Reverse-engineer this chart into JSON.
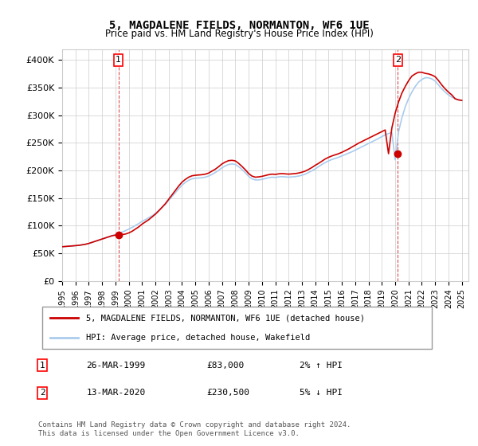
{
  "title": "5, MAGDALENE FIELDS, NORMANTON, WF6 1UE",
  "subtitle": "Price paid vs. HM Land Registry's House Price Index (HPI)",
  "ylabel_ticks": [
    "£0",
    "£50K",
    "£100K",
    "£150K",
    "£200K",
    "£250K",
    "£300K",
    "£350K",
    "£400K"
  ],
  "ytick_values": [
    0,
    50000,
    100000,
    150000,
    200000,
    250000,
    300000,
    350000,
    400000
  ],
  "ylim": [
    0,
    420000
  ],
  "xlim_start": 1995.0,
  "xlim_end": 2025.5,
  "legend_line1": "5, MAGDALENE FIELDS, NORMANTON, WF6 1UE (detached house)",
  "legend_line2": "HPI: Average price, detached house, Wakefield",
  "sale1_date": "26-MAR-1999",
  "sale1_price": "£83,000",
  "sale1_hpi": "2% ↑ HPI",
  "sale1_x": 1999.23,
  "sale1_y": 83000,
  "sale2_date": "13-MAR-2020",
  "sale2_price": "£230,500",
  "sale2_hpi": "5% ↓ HPI",
  "sale2_x": 2020.2,
  "sale2_y": 230500,
  "footnote": "Contains HM Land Registry data © Crown copyright and database right 2024.\nThis data is licensed under the Open Government Licence v3.0.",
  "line_red": "#cc0000",
  "line_blue": "#aaccee",
  "bg_color": "#ffffff",
  "grid_color": "#cccccc",
  "hpi_years": [
    1995.0,
    1995.25,
    1995.5,
    1995.75,
    1996.0,
    1996.25,
    1996.5,
    1996.75,
    1997.0,
    1997.25,
    1997.5,
    1997.75,
    1998.0,
    1998.25,
    1998.5,
    1998.75,
    1999.0,
    1999.25,
    1999.5,
    1999.75,
    2000.0,
    2000.25,
    2000.5,
    2000.75,
    2001.0,
    2001.25,
    2001.5,
    2001.75,
    2002.0,
    2002.25,
    2002.5,
    2002.75,
    2003.0,
    2003.25,
    2003.5,
    2003.75,
    2004.0,
    2004.25,
    2004.5,
    2004.75,
    2005.0,
    2005.25,
    2005.5,
    2005.75,
    2006.0,
    2006.25,
    2006.5,
    2006.75,
    2007.0,
    2007.25,
    2007.5,
    2007.75,
    2008.0,
    2008.25,
    2008.5,
    2008.75,
    2009.0,
    2009.25,
    2009.5,
    2009.75,
    2010.0,
    2010.25,
    2010.5,
    2010.75,
    2011.0,
    2011.25,
    2011.5,
    2011.75,
    2012.0,
    2012.25,
    2012.5,
    2012.75,
    2013.0,
    2013.25,
    2013.5,
    2013.75,
    2014.0,
    2014.25,
    2014.5,
    2014.75,
    2015.0,
    2015.25,
    2015.5,
    2015.75,
    2016.0,
    2016.25,
    2016.5,
    2016.75,
    2017.0,
    2017.25,
    2017.5,
    2017.75,
    2018.0,
    2018.25,
    2018.5,
    2018.75,
    2019.0,
    2019.25,
    2019.5,
    2019.75,
    2020.0,
    2020.25,
    2020.5,
    2020.75,
    2021.0,
    2021.25,
    2021.5,
    2021.75,
    2022.0,
    2022.25,
    2022.5,
    2022.75,
    2023.0,
    2023.25,
    2023.5,
    2023.75,
    2024.0,
    2024.25,
    2024.5,
    2024.75,
    2025.0
  ],
  "hpi_values": [
    62000,
    62500,
    63000,
    63500,
    64000,
    64500,
    65500,
    66500,
    68000,
    70000,
    72000,
    74000,
    76000,
    78000,
    80000,
    82000,
    84000,
    86000,
    88500,
    91000,
    94000,
    97000,
    100500,
    104000,
    108000,
    111000,
    114500,
    118000,
    122500,
    127500,
    133000,
    139000,
    146000,
    153000,
    160000,
    167000,
    173500,
    178500,
    182500,
    185000,
    186000,
    186500,
    187000,
    188000,
    190000,
    193000,
    196500,
    200500,
    205000,
    208500,
    211000,
    212000,
    211000,
    207000,
    202000,
    196000,
    189500,
    185000,
    183000,
    183000,
    184000,
    185500,
    187000,
    188000,
    187500,
    188500,
    189000,
    188500,
    188000,
    188500,
    189000,
    190000,
    191500,
    193500,
    196500,
    199500,
    203000,
    207000,
    211000,
    214500,
    217500,
    220000,
    222000,
    224000,
    226500,
    229000,
    231500,
    234000,
    237000,
    240000,
    243000,
    246000,
    249000,
    252000,
    255000,
    258000,
    261500,
    264500,
    267000,
    269000,
    219500,
    270000,
    295000,
    315000,
    330000,
    342000,
    352000,
    360000,
    365000,
    368000,
    368000,
    366000,
    362000,
    355000,
    348000,
    342000,
    337000,
    333000,
    330000,
    328000,
    327000
  ],
  "red_years": [
    1995.0,
    1995.25,
    1995.5,
    1995.75,
    1996.0,
    1996.25,
    1996.5,
    1996.75,
    1997.0,
    1997.25,
    1997.5,
    1997.75,
    1998.0,
    1998.25,
    1998.5,
    1998.75,
    1999.0,
    1999.25,
    1999.5,
    1999.75,
    2000.0,
    2000.25,
    2000.5,
    2000.75,
    2001.0,
    2001.25,
    2001.5,
    2001.75,
    2002.0,
    2002.25,
    2002.5,
    2002.75,
    2003.0,
    2003.25,
    2003.5,
    2003.75,
    2004.0,
    2004.25,
    2004.5,
    2004.75,
    2005.0,
    2005.25,
    2005.5,
    2005.75,
    2006.0,
    2006.25,
    2006.5,
    2006.75,
    2007.0,
    2007.25,
    2007.5,
    2007.75,
    2008.0,
    2008.25,
    2008.5,
    2008.75,
    2009.0,
    2009.25,
    2009.5,
    2009.75,
    2010.0,
    2010.25,
    2010.5,
    2010.75,
    2011.0,
    2011.25,
    2011.5,
    2011.75,
    2012.0,
    2012.25,
    2012.5,
    2012.75,
    2013.0,
    2013.25,
    2013.5,
    2013.75,
    2014.0,
    2014.25,
    2014.5,
    2014.75,
    2015.0,
    2015.25,
    2015.5,
    2015.75,
    2016.0,
    2016.25,
    2016.5,
    2016.75,
    2017.0,
    2017.25,
    2017.5,
    2017.75,
    2018.0,
    2018.25,
    2018.5,
    2018.75,
    2019.0,
    2019.25,
    2019.5,
    2019.75,
    2020.0,
    2020.25,
    2020.5,
    2020.75,
    2021.0,
    2021.25,
    2021.5,
    2021.75,
    2022.0,
    2022.25,
    2022.5,
    2022.75,
    2023.0,
    2023.25,
    2023.5,
    2023.75,
    2024.0,
    2024.25,
    2024.5,
    2024.75,
    2025.0
  ],
  "red_values": [
    62000,
    62500,
    63000,
    63500,
    64000,
    64500,
    65500,
    66500,
    68000,
    70000,
    72000,
    74000,
    76000,
    78000,
    80000,
    82000,
    83000,
    83500,
    84000,
    85000,
    87000,
    90000,
    94000,
    98000,
    103000,
    107000,
    111000,
    116000,
    121000,
    127000,
    133500,
    140000,
    148000,
    156000,
    164000,
    172000,
    179000,
    184000,
    188000,
    190500,
    191500,
    192000,
    192500,
    193500,
    195500,
    199000,
    202500,
    207000,
    212000,
    215500,
    218000,
    218500,
    217500,
    213000,
    207500,
    201500,
    194500,
    190000,
    188000,
    188500,
    189500,
    191000,
    192500,
    193500,
    193000,
    194000,
    194500,
    194000,
    193500,
    194000,
    194500,
    195500,
    197000,
    199000,
    202000,
    205500,
    209500,
    213000,
    217000,
    221000,
    224000,
    226500,
    228500,
    230500,
    233000,
    236000,
    239000,
    242500,
    246000,
    249500,
    252500,
    255500,
    258500,
    261500,
    264500,
    267500,
    270500,
    273500,
    230500,
    277000,
    304000,
    324000,
    340000,
    352000,
    362500,
    371000,
    375000,
    378000,
    378000,
    376000,
    375000,
    373000,
    370000,
    363000,
    355000,
    348000,
    342000,
    337000,
    330000,
    328000,
    327000
  ]
}
